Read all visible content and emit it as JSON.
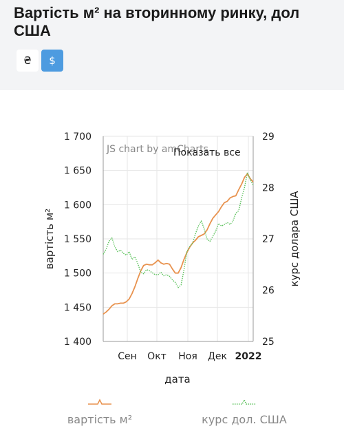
{
  "page": {
    "title": "Вартість м² на вторинному ринку, дол США"
  },
  "currency_toggle": {
    "uah_label": "₴",
    "usd_label": "$",
    "selected": "usd"
  },
  "colors": {
    "header_bg": "#f3f4f6",
    "active_button": "#4d9be0",
    "price_series": "#e8924e",
    "rate_series": "#5cc25c",
    "grid": "#e6e6e6"
  },
  "chart_data": {
    "type": "line",
    "watermark": "JS chart by amCharts",
    "zoom_reset_label": "Показать все",
    "xlabel": "дата",
    "x_ticks": [
      "Сен",
      "Окт",
      "Ноя",
      "Дек",
      "2022"
    ],
    "y_left": {
      "label": "вартість м²",
      "range": [
        1400,
        1700
      ],
      "ticks": [
        1400,
        1450,
        1500,
        1550,
        1600,
        1650,
        1700
      ],
      "tick_labels": [
        "1 400",
        "1 450",
        "1 500",
        "1 550",
        "1 600",
        "1 650",
        "1 700"
      ]
    },
    "y_right": {
      "label": "курс долара США",
      "range": [
        25,
        29
      ],
      "ticks": [
        25,
        26,
        27,
        28,
        29
      ],
      "tick_labels": [
        "25",
        "26",
        "27",
        "28",
        "29"
      ]
    },
    "grid": true,
    "legend_position": "bottom",
    "series": [
      {
        "name": "вартість м²",
        "axis": "left",
        "style": "solid",
        "color": "#e8924e",
        "values": [
          1440,
          1443,
          1447,
          1452,
          1455,
          1455,
          1456,
          1456,
          1458,
          1462,
          1470,
          1480,
          1492,
          1503,
          1511,
          1513,
          1512,
          1512,
          1515,
          1519,
          1515,
          1513,
          1514,
          1513,
          1506,
          1500,
          1500,
          1508,
          1520,
          1530,
          1538,
          1544,
          1548,
          1553,
          1555,
          1557,
          1563,
          1572,
          1580,
          1585,
          1590,
          1597,
          1603,
          1605,
          1610,
          1612,
          1613,
          1622,
          1630,
          1640,
          1645,
          1638,
          1633
        ]
      },
      {
        "name": "курс дол. США",
        "axis": "right",
        "style": "dotted",
        "color": "#5cc25c",
        "values": [
          26.7,
          26.8,
          26.95,
          27.02,
          26.85,
          26.75,
          26.78,
          26.72,
          26.68,
          26.75,
          26.6,
          26.65,
          26.52,
          26.35,
          26.32,
          26.4,
          26.38,
          26.34,
          26.3,
          26.3,
          26.35,
          26.28,
          26.3,
          26.27,
          26.2,
          26.15,
          26.05,
          26.1,
          26.4,
          26.75,
          26.85,
          26.92,
          27.1,
          27.25,
          27.35,
          27.2,
          27.0,
          26.95,
          27.05,
          27.15,
          27.3,
          27.25,
          27.28,
          27.32,
          27.28,
          27.35,
          27.5,
          27.55,
          27.8,
          28.0,
          28.3,
          28.15,
          28.05
        ]
      }
    ]
  }
}
